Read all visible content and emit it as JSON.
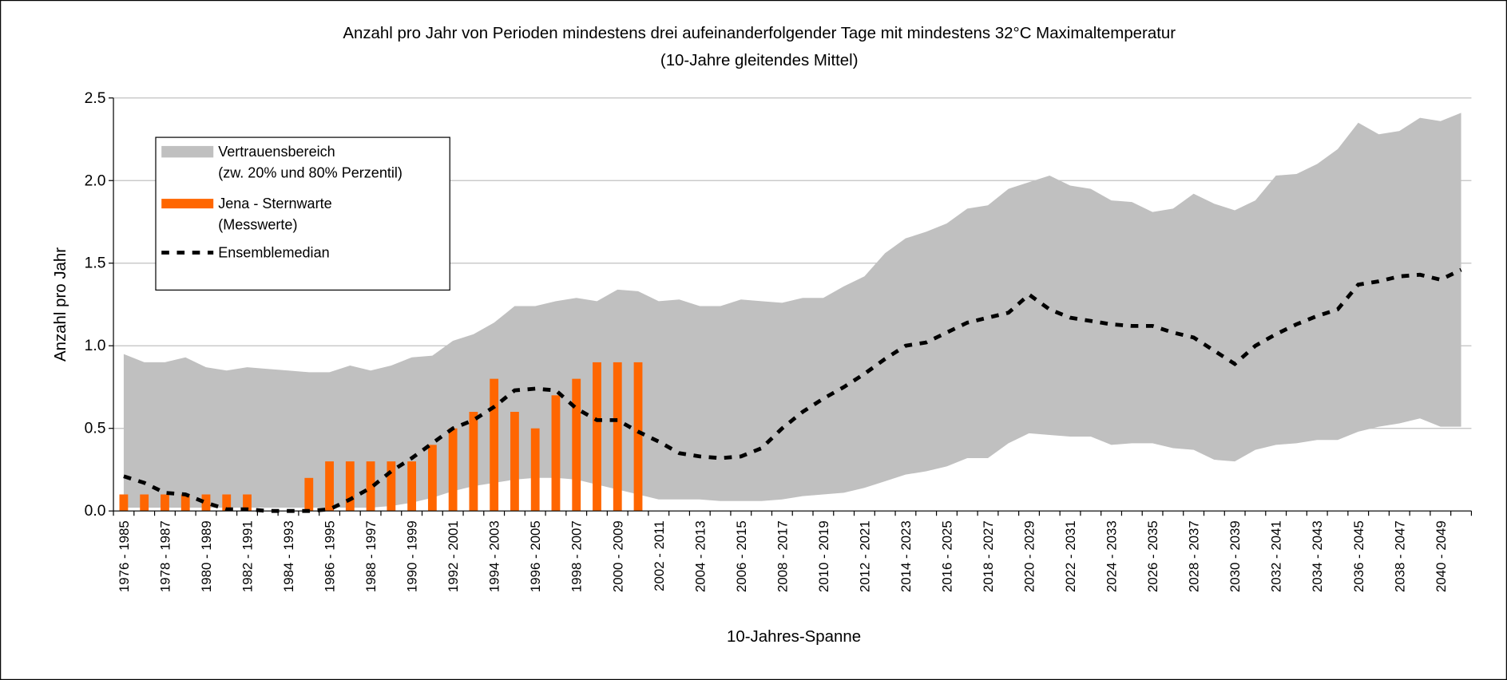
{
  "chart_data": {
    "type": "band-bar-line",
    "title": "Anzahl pro Jahr von Perioden mindestens drei aufeinanderfolgender Tage mit mindestens 32°C Maximaltemperatur",
    "subtitle": "(10-Jahre gleitendes Mittel)",
    "x_label": "10-Jahres-Spanne",
    "y_label": "Anzahl pro Jahr",
    "categories": [
      "1976 - 1985",
      null,
      "1978 - 1987",
      null,
      "1980 - 1989",
      null,
      "1982 - 1991",
      null,
      "1984 - 1993",
      null,
      "1986 - 1995",
      null,
      "1988 - 1997",
      null,
      "1990 - 1999",
      null,
      "1992 - 2001",
      null,
      "1994 - 2003",
      null,
      "1996 - 2005",
      null,
      "1998 - 2007",
      null,
      "2000 - 2009",
      null,
      "2002 - 2011",
      null,
      "2004 - 2013",
      null,
      "2006 - 2015",
      null,
      "2008 - 2017",
      null,
      "2010 - 2019",
      null,
      "2012 - 2021",
      null,
      "2014 - 2023",
      null,
      "2016 - 2025",
      null,
      "2018 - 2027",
      null,
      "2020 - 2029",
      null,
      "2022 - 2031",
      null,
      "2024 - 2033",
      null,
      "2026 - 2035",
      null,
      "2028 - 2037",
      null,
      "2030 - 2039",
      null,
      "2032 - 2041",
      null,
      "2034 - 2043",
      null,
      "2036 - 2045",
      null,
      "2038 - 2047",
      null,
      "2040 - 2049",
      null
    ],
    "ylim": [
      0,
      2.5
    ],
    "yticks": [
      {
        "value": 0,
        "label": "0.0"
      },
      0.5,
      {
        "value": 1,
        "label": "1.0"
      },
      1.5,
      {
        "value": 2,
        "label": "2.0"
      },
      2.5
    ],
    "grid": true,
    "legend": "upper left",
    "series": [
      {
        "name": [
          "Vertrauensbereich",
          "(zw. 20% und 80% Perzentil)"
        ],
        "kind": "band",
        "color": "#c0c0c0",
        "lower": [
          0.02,
          0.02,
          0.02,
          0.02,
          0.02,
          0.02,
          0.02,
          0.02,
          0.02,
          0.02,
          0.02,
          0.02,
          0.02,
          0.03,
          0.05,
          0.08,
          0.12,
          0.15,
          0.17,
          0.19,
          0.2,
          0.2,
          0.19,
          0.16,
          0.13,
          0.1,
          0.07,
          0.07,
          0.07,
          0.06,
          0.06,
          0.06,
          0.07,
          0.09,
          0.1,
          0.11,
          0.14,
          0.18,
          0.22,
          0.24,
          0.27,
          0.32,
          0.32,
          0.41,
          0.47,
          0.46,
          0.45,
          0.45,
          0.4,
          0.41,
          0.41,
          0.38,
          0.37,
          0.31,
          0.3,
          0.37,
          0.4,
          0.41,
          0.43,
          0.43,
          0.48,
          0.51,
          0.53,
          0.56,
          0.51,
          0.51
        ],
        "upper": [
          0.95,
          0.9,
          0.9,
          0.93,
          0.87,
          0.85,
          0.87,
          0.86,
          0.85,
          0.84,
          0.84,
          0.88,
          0.85,
          0.88,
          0.93,
          0.94,
          1.03,
          1.07,
          1.14,
          1.24,
          1.24,
          1.27,
          1.29,
          1.27,
          1.34,
          1.33,
          1.27,
          1.28,
          1.24,
          1.24,
          1.28,
          1.27,
          1.26,
          1.29,
          1.29,
          1.36,
          1.42,
          1.56,
          1.65,
          1.69,
          1.74,
          1.83,
          1.85,
          1.95,
          1.99,
          2.03,
          1.97,
          1.95,
          1.88,
          1.87,
          1.81,
          1.83,
          1.92,
          1.86,
          1.82,
          1.88,
          2.03,
          2.04,
          2.1,
          2.19,
          2.35,
          2.28,
          2.3,
          2.38,
          2.36,
          2.41
        ]
      },
      {
        "name": [
          "Jena - Sternwarte",
          "(Messwerte)"
        ],
        "kind": "bar",
        "color": "#ff6600",
        "values": [
          0.1,
          0.1,
          0.1,
          0.1,
          0.1,
          0.1,
          0.1,
          0,
          0,
          0.2,
          0.3,
          0.3,
          0.3,
          0.3,
          0.3,
          0.4,
          0.5,
          0.6,
          0.8,
          0.6,
          0.5,
          0.7,
          0.8,
          0.9,
          0.9,
          0.9,
          null,
          null,
          null,
          null,
          null,
          null,
          null,
          null,
          null,
          null,
          null,
          null,
          null,
          null,
          null,
          null,
          null,
          null,
          null,
          null,
          null,
          null,
          null,
          null,
          null,
          null,
          null,
          null,
          null,
          null,
          null,
          null,
          null,
          null,
          null,
          null,
          null,
          null,
          null,
          null
        ]
      },
      {
        "name": [
          "Ensemblemedian"
        ],
        "kind": "line",
        "color": "#000000",
        "values": [
          0.21,
          0.17,
          0.11,
          0.1,
          0.05,
          0.01,
          0.01,
          0,
          0,
          0,
          0.01,
          0.07,
          0.14,
          0.24,
          0.32,
          0.41,
          0.5,
          0.55,
          0.63,
          0.73,
          0.74,
          0.73,
          0.62,
          0.55,
          0.55,
          0.48,
          0.42,
          0.35,
          0.33,
          0.32,
          0.33,
          0.38,
          0.5,
          0.6,
          0.68,
          0.75,
          0.83,
          0.92,
          1.0,
          1.02,
          1.08,
          1.14,
          1.17,
          1.2,
          1.31,
          1.22,
          1.17,
          1.15,
          1.13,
          1.12,
          1.12,
          1.08,
          1.05,
          0.97,
          0.89,
          1.0,
          1.07,
          1.13,
          1.18,
          1.22,
          1.37,
          1.39,
          1.42,
          1.43,
          1.4,
          1.46
        ]
      }
    ]
  }
}
